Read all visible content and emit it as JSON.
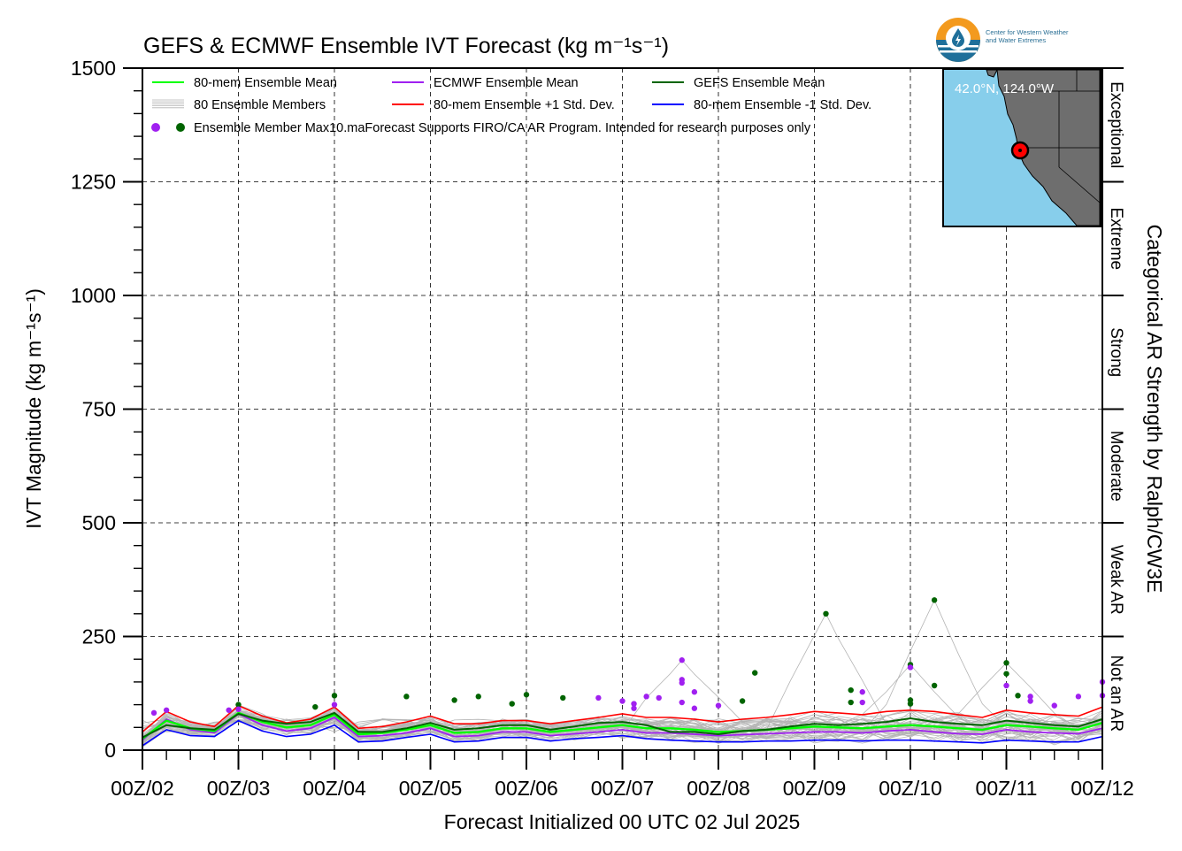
{
  "chart_data": {
    "type": "line",
    "title": "GEFS & ECMWF Ensemble IVT Forecast (kg m⁻¹s⁻¹)",
    "xlabel": "Forecast Initialized 00 UTC 02 Jul 2025",
    "ylabel": "IVT Magnitude (kg m⁻¹s⁻¹)",
    "right_axis_label": "Categorical AR Strength by Ralph/CW3E",
    "ylim": [
      0,
      1500
    ],
    "y_ticks": [
      0,
      250,
      500,
      750,
      1000,
      1250,
      1500
    ],
    "x_range_days": [
      2,
      12
    ],
    "x_tick_labels": [
      "00Z/02",
      "00Z/03",
      "00Z/04",
      "00Z/05",
      "00Z/06",
      "00Z/07",
      "00Z/08",
      "00Z/09",
      "00Z/10",
      "00Z/11",
      "00Z/12"
    ],
    "grid": true,
    "categories": [
      {
        "label": "Not an AR",
        "min": 0,
        "max": 250
      },
      {
        "label": "Weak AR",
        "min": 250,
        "max": 500
      },
      {
        "label": "Moderate",
        "min": 500,
        "max": 750
      },
      {
        "label": "Strong",
        "min": 750,
        "max": 1000
      },
      {
        "label": "Extreme",
        "min": 1000,
        "max": 1250
      },
      {
        "label": "Exceptional",
        "min": 1250,
        "max": 1500
      }
    ],
    "legend": {
      "placement": "top-left",
      "entries": [
        {
          "label": "80-mem Ensemble Mean",
          "color": "#00ff00"
        },
        {
          "label": "ECMWF Ensemble Mean",
          "color": "#a020f0"
        },
        {
          "label": "GEFS Ensemble Mean",
          "color": "#006400"
        },
        {
          "label": "80 Ensemble Members",
          "color": "#b0b0b0"
        },
        {
          "label": "80-mem Ensemble +1 Std. Dev.",
          "color": "#ff0000"
        },
        {
          "label": "80-mem Ensemble -1 Std. Dev.",
          "color": "#0000ff"
        },
        {
          "label": "Ensemble Member Max",
          "color": "#a020f0"
        }
      ],
      "note": "10.maForecast Supports FIRO/CA AR Program. Intended for research purposes only"
    },
    "x": [
      2.0,
      2.25,
      2.5,
      2.75,
      3.0,
      3.25,
      3.5,
      3.75,
      4.0,
      4.25,
      4.5,
      4.75,
      5.0,
      5.25,
      5.5,
      5.75,
      6.0,
      6.25,
      6.5,
      6.75,
      7.0,
      7.25,
      7.5,
      7.75,
      8.0,
      8.25,
      8.5,
      8.75,
      9.0,
      9.25,
      9.5,
      9.75,
      10.0,
      10.25,
      10.5,
      10.75,
      11.0,
      11.25,
      11.5,
      11.75,
      12.0
    ],
    "series": [
      {
        "name": "80-mem Ensemble Mean",
        "color": "#00ff00",
        "width": 2.4,
        "values": [
          25,
          65,
          48,
          42,
          82,
          62,
          50,
          55,
          78,
          35,
          38,
          45,
          55,
          38,
          40,
          48,
          48,
          40,
          45,
          50,
          55,
          48,
          48,
          45,
          40,
          42,
          45,
          48,
          52,
          50,
          48,
          52,
          55,
          52,
          48,
          45,
          55,
          52,
          48,
          45,
          60
        ]
      },
      {
        "name": "ECMWF Ensemble Mean",
        "color": "#a020f0",
        "width": 1.8,
        "values": [
          22,
          68,
          45,
          38,
          80,
          55,
          42,
          48,
          72,
          30,
          32,
          38,
          48,
          30,
          32,
          40,
          40,
          32,
          36,
          40,
          45,
          38,
          38,
          35,
          32,
          34,
          36,
          38,
          40,
          40,
          38,
          42,
          45,
          40,
          36,
          35,
          45,
          40,
          38,
          36,
          48
        ]
      },
      {
        "name": "GEFS Ensemble Mean",
        "color": "#006400",
        "width": 2.0,
        "values": [
          28,
          55,
          48,
          45,
          80,
          65,
          58,
          62,
          82,
          40,
          40,
          48,
          60,
          45,
          48,
          55,
          55,
          45,
          52,
          60,
          62,
          55,
          40,
          40,
          35,
          42,
          45,
          52,
          58,
          55,
          58,
          62,
          70,
          62,
          58,
          55,
          65,
          60,
          55,
          52,
          68
        ]
      },
      {
        "name": "80-mem Ensemble +1 Std. Dev.",
        "color": "#ff0000",
        "width": 1.6,
        "values": [
          40,
          85,
          62,
          52,
          98,
          75,
          60,
          68,
          95,
          48,
          52,
          62,
          75,
          58,
          58,
          65,
          65,
          58,
          65,
          72,
          80,
          72,
          72,
          68,
          62,
          68,
          72,
          78,
          85,
          82,
          78,
          85,
          88,
          85,
          78,
          72,
          88,
          82,
          78,
          75,
          95
        ]
      },
      {
        "name": "80-mem Ensemble -1 Std. Dev.",
        "color": "#0000ff",
        "width": 1.6,
        "values": [
          10,
          45,
          32,
          30,
          65,
          42,
          30,
          35,
          55,
          18,
          20,
          28,
          35,
          18,
          20,
          28,
          28,
          20,
          25,
          28,
          32,
          25,
          22,
          20,
          18,
          18,
          20,
          20,
          22,
          22,
          20,
          22,
          22,
          20,
          18,
          16,
          22,
          20,
          18,
          18,
          30
        ]
      }
    ],
    "member_max_points": [
      {
        "x": 2.12,
        "y": 82,
        "model": "ECMWF"
      },
      {
        "x": 2.25,
        "y": 88,
        "model": "ECMWF"
      },
      {
        "x": 2.9,
        "y": 88,
        "model": "ECMWF"
      },
      {
        "x": 3.0,
        "y": 100,
        "model": "GEFS"
      },
      {
        "x": 3.0,
        "y": 90,
        "model": "ECMWF"
      },
      {
        "x": 3.8,
        "y": 95,
        "model": "GEFS"
      },
      {
        "x": 4.0,
        "y": 120,
        "model": "GEFS"
      },
      {
        "x": 4.0,
        "y": 100,
        "model": "ECMWF"
      },
      {
        "x": 4.75,
        "y": 118,
        "model": "GEFS"
      },
      {
        "x": 5.25,
        "y": 110,
        "model": "GEFS"
      },
      {
        "x": 5.5,
        "y": 118,
        "model": "GEFS"
      },
      {
        "x": 5.85,
        "y": 102,
        "model": "GEFS"
      },
      {
        "x": 6.0,
        "y": 122,
        "model": "GEFS"
      },
      {
        "x": 6.38,
        "y": 115,
        "model": "GEFS"
      },
      {
        "x": 6.75,
        "y": 115,
        "model": "ECMWF"
      },
      {
        "x": 7.0,
        "y": 108,
        "model": "ECMWF"
      },
      {
        "x": 7.12,
        "y": 102,
        "model": "ECMWF"
      },
      {
        "x": 7.12,
        "y": 92,
        "model": "ECMWF"
      },
      {
        "x": 7.25,
        "y": 118,
        "model": "ECMWF"
      },
      {
        "x": 7.38,
        "y": 115,
        "model": "ECMWF"
      },
      {
        "x": 7.62,
        "y": 198,
        "model": "ECMWF"
      },
      {
        "x": 7.62,
        "y": 155,
        "model": "ECMWF"
      },
      {
        "x": 7.62,
        "y": 148,
        "model": "ECMWF"
      },
      {
        "x": 7.62,
        "y": 105,
        "model": "ECMWF"
      },
      {
        "x": 7.75,
        "y": 128,
        "model": "ECMWF"
      },
      {
        "x": 7.75,
        "y": 92,
        "model": "ECMWF"
      },
      {
        "x": 8.0,
        "y": 98,
        "model": "ECMWF"
      },
      {
        "x": 8.25,
        "y": 108,
        "model": "GEFS"
      },
      {
        "x": 8.38,
        "y": 170,
        "model": "GEFS"
      },
      {
        "x": 9.12,
        "y": 300,
        "model": "GEFS"
      },
      {
        "x": 9.38,
        "y": 132,
        "model": "GEFS"
      },
      {
        "x": 9.38,
        "y": 105,
        "model": "GEFS"
      },
      {
        "x": 9.5,
        "y": 128,
        "model": "ECMWF"
      },
      {
        "x": 9.5,
        "y": 105,
        "model": "ECMWF"
      },
      {
        "x": 10.0,
        "y": 188,
        "model": "GEFS"
      },
      {
        "x": 10.0,
        "y": 182,
        "model": "ECMWF"
      },
      {
        "x": 10.0,
        "y": 110,
        "model": "GEFS"
      },
      {
        "x": 10.0,
        "y": 102,
        "model": "GEFS"
      },
      {
        "x": 10.25,
        "y": 330,
        "model": "GEFS"
      },
      {
        "x": 10.25,
        "y": 142,
        "model": "GEFS"
      },
      {
        "x": 11.0,
        "y": 192,
        "model": "GEFS"
      },
      {
        "x": 11.0,
        "y": 168,
        "model": "GEFS"
      },
      {
        "x": 11.0,
        "y": 142,
        "model": "ECMWF"
      },
      {
        "x": 11.12,
        "y": 120,
        "model": "GEFS"
      },
      {
        "x": 11.25,
        "y": 118,
        "model": "ECMWF"
      },
      {
        "x": 11.25,
        "y": 108,
        "model": "ECMWF"
      },
      {
        "x": 11.5,
        "y": 98,
        "model": "ECMWF"
      },
      {
        "x": 11.75,
        "y": 118,
        "model": "ECMWF"
      },
      {
        "x": 12.0,
        "y": 150,
        "model": "ECMWF"
      },
      {
        "x": 12.0,
        "y": 120,
        "model": "ECMWF"
      }
    ],
    "member_color": "#b4b4b4",
    "ecmwf_point_color": "#a020f0",
    "gefs_point_color": "#006400"
  },
  "inset_map": {
    "label": "42.0°N, 124.0°W",
    "ocean_color": "#87ceeb",
    "land_color": "#6e6e6e",
    "marker_color": "#ff0000"
  },
  "logo": {
    "line1": "Center for Western Weather",
    "line2": "and Water Extremes",
    "icon": "cw3e-water-drop-icon"
  }
}
